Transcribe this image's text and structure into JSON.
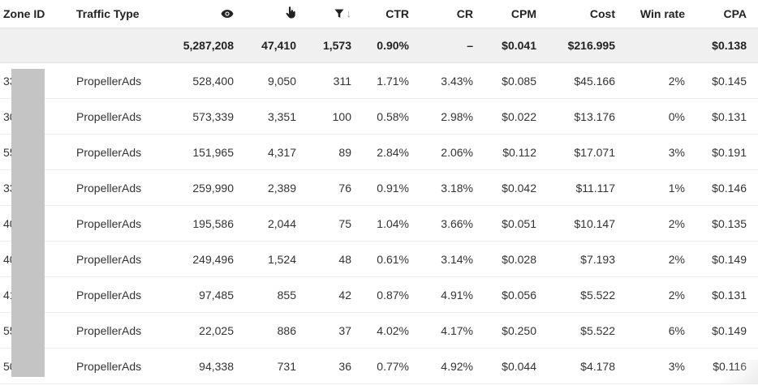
{
  "columns": {
    "zone_id": "Zone ID",
    "traffic_type": "Traffic Type",
    "impressions_icon": "eye-icon",
    "clicks_icon": "pointer-hand-icon",
    "conversions_icon": "funnel-icon",
    "ctr": "CTR",
    "cr": "CR",
    "cpm": "CPM",
    "cost": "Cost",
    "win_rate": "Win rate",
    "cpa": "CPA"
  },
  "sort": {
    "arrow": "↓",
    "column": "conversions",
    "direction": "desc"
  },
  "totals": {
    "impressions": "5,287,208",
    "clicks": "47,410",
    "conversions": "1,573",
    "ctr": "0.90%",
    "cr": "–",
    "cpm": "$0.041",
    "cost": "$216.995",
    "cpa": "$0.138"
  },
  "rows": [
    {
      "zone_id": "33   5",
      "traffic_type": "PropellerAds",
      "impressions": "528,400",
      "clicks": "9,050",
      "conversions": "311",
      "ctr": "1.71%",
      "cr": "3.43%",
      "cpm": "$0.085",
      "cost": "$45.166",
      "win_rate": "2%",
      "cpa": "$0.145"
    },
    {
      "zone_id": "30   7",
      "traffic_type": "PropellerAds",
      "impressions": "573,339",
      "clicks": "3,351",
      "conversions": "100",
      "ctr": "0.58%",
      "cr": "2.98%",
      "cpm": "$0.022",
      "cost": "$13.176",
      "win_rate": "0%",
      "cpa": "$0.131"
    },
    {
      "zone_id": "55   5",
      "traffic_type": "PropellerAds",
      "impressions": "151,965",
      "clicks": "4,317",
      "conversions": "89",
      "ctr": "2.84%",
      "cr": "2.06%",
      "cpm": "$0.112",
      "cost": "$17.071",
      "win_rate": "3%",
      "cpa": "$0.191"
    },
    {
      "zone_id": "33   7",
      "traffic_type": "PropellerAds",
      "impressions": "259,990",
      "clicks": "2,389",
      "conversions": "76",
      "ctr": "0.91%",
      "cr": "3.18%",
      "cpm": "$0.042",
      "cost": "$11.117",
      "win_rate": "1%",
      "cpa": "$0.146"
    },
    {
      "zone_id": "40   4",
      "traffic_type": "PropellerAds",
      "impressions": "195,586",
      "clicks": "2,044",
      "conversions": "75",
      "ctr": "1.04%",
      "cr": "3.66%",
      "cpm": "$0.051",
      "cost": "$10.147",
      "win_rate": "2%",
      "cpa": "$0.135"
    },
    {
      "zone_id": "40   2",
      "traffic_type": "PropellerAds",
      "impressions": "249,496",
      "clicks": "1,524",
      "conversions": "48",
      "ctr": "0.61%",
      "cr": "3.14%",
      "cpm": "$0.028",
      "cost": "$7.193",
      "win_rate": "2%",
      "cpa": "$0.149"
    },
    {
      "zone_id": "41   2",
      "traffic_type": "PropellerAds",
      "impressions": "97,485",
      "clicks": "855",
      "conversions": "42",
      "ctr": "0.87%",
      "cr": "4.91%",
      "cpm": "$0.056",
      "cost": "$5.522",
      "win_rate": "2%",
      "cpa": "$0.131"
    },
    {
      "zone_id": "55   3",
      "traffic_type": "PropellerAds",
      "impressions": "22,025",
      "clicks": "886",
      "conversions": "37",
      "ctr": "4.02%",
      "cr": "4.17%",
      "cpm": "$0.250",
      "cost": "$5.522",
      "win_rate": "6%",
      "cpa": "$0.149"
    },
    {
      "zone_id": "50   9",
      "traffic_type": "PropellerAds",
      "impressions": "94,338",
      "clicks": "731",
      "conversions": "36",
      "ctr": "0.77%",
      "cr": "4.92%",
      "cpm": "$0.044",
      "cost": "$4.178",
      "win_rate": "3%",
      "cpa": "$0.116"
    }
  ]
}
